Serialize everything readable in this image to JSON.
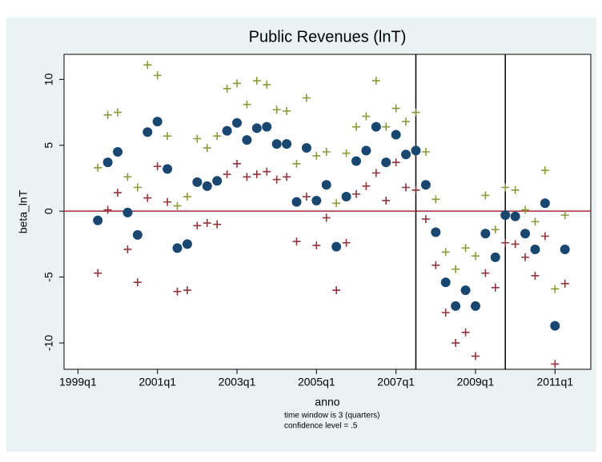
{
  "chart_data": {
    "type": "scatter",
    "title": "Public Revenues (lnT)",
    "xlabel": "anno",
    "ylabel": "beta_lnT",
    "notes": [
      "time window is 3 (quarters)",
      "confidence level = .5"
    ],
    "x": [
      158,
      159,
      160,
      161,
      162,
      163,
      164,
      165,
      166,
      167,
      168,
      169,
      170,
      171,
      172,
      173,
      174,
      175,
      176,
      177,
      178,
      179,
      180,
      181,
      182,
      183,
      184,
      185,
      186,
      187,
      188,
      189,
      190,
      191,
      192,
      193,
      194,
      195,
      196,
      197,
      198,
      199,
      200,
      201,
      202,
      203,
      204,
      205
    ],
    "series": [
      {
        "color": "#1a476f",
        "marker": "circle",
        "values": [
          -0.7,
          3.7,
          4.5,
          -0.1,
          -1.8,
          6.0,
          6.8,
          3.2,
          -2.8,
          -2.5,
          2.2,
          1.9,
          2.3,
          6.1,
          6.7,
          5.4,
          6.3,
          6.4,
          5.1,
          5.1,
          0.7,
          4.8,
          0.8,
          2.0,
          -2.7,
          1.1,
          3.8,
          4.6,
          6.4,
          3.7,
          5.8,
          4.3,
          4.6,
          2.0,
          -1.6,
          -5.4,
          -7.2,
          -6.0,
          -7.2,
          -1.7,
          -3.5,
          -0.3,
          -0.4,
          -1.7,
          -2.9,
          0.6,
          -8.7,
          -2.9
        ]
      },
      {
        "color": "#8a9a3a",
        "marker": "plus",
        "values": [
          3.3,
          7.3,
          7.5,
          2.6,
          1.8,
          11.1,
          10.3,
          5.7,
          0.4,
          1.1,
          5.5,
          4.8,
          5.7,
          9.3,
          9.7,
          8.1,
          9.9,
          9.6,
          7.7,
          7.6,
          3.6,
          8.6,
          4.2,
          4.5,
          0.6,
          4.4,
          6.4,
          7.2,
          9.9,
          6.4,
          7.8,
          6.8,
          7.5,
          4.5,
          0.9,
          -3.1,
          -4.4,
          -2.8,
          -3.4,
          1.2,
          -1.4,
          1.8,
          1.6,
          0.1,
          -0.8,
          3.1,
          -5.9,
          -0.3
        ]
      },
      {
        "color": "#90353b",
        "marker": "plus",
        "values": [
          -4.7,
          0.1,
          1.4,
          -2.9,
          -5.4,
          1.0,
          3.4,
          0.7,
          -6.1,
          -6.0,
          -1.1,
          -0.9,
          -1.0,
          2.8,
          3.6,
          2.6,
          2.8,
          3.0,
          2.4,
          2.6,
          -2.3,
          1.1,
          -2.6,
          -0.5,
          -6.0,
          -2.4,
          1.3,
          1.9,
          2.9,
          0.8,
          3.7,
          1.8,
          1.6,
          -0.6,
          -4.1,
          -7.7,
          -10.0,
          -9.2,
          -11.0,
          -4.7,
          -5.8,
          -2.4,
          -2.5,
          -3.5,
          -4.9,
          -1.9,
          -11.6,
          -5.5
        ]
      }
    ],
    "xlim": [
      154.6,
      207.6
    ],
    "ylim": [
      -12,
      11.9
    ],
    "xticks": [
      {
        "value": 156,
        "label": "1999q1"
      },
      {
        "value": 164,
        "label": "2001q1"
      },
      {
        "value": 172,
        "label": "2003q1"
      },
      {
        "value": 180,
        "label": "2005q1"
      },
      {
        "value": 188,
        "label": "2007q1"
      },
      {
        "value": 196,
        "label": "2009q1"
      },
      {
        "value": 204,
        "label": "2011q1"
      }
    ],
    "yticks": [
      -10,
      -5,
      0,
      5,
      10
    ],
    "xlines": [
      190,
      199
    ],
    "xline_color": "#000000",
    "ylines": [
      0
    ],
    "yline_color": "#b0263c",
    "grid": false
  }
}
